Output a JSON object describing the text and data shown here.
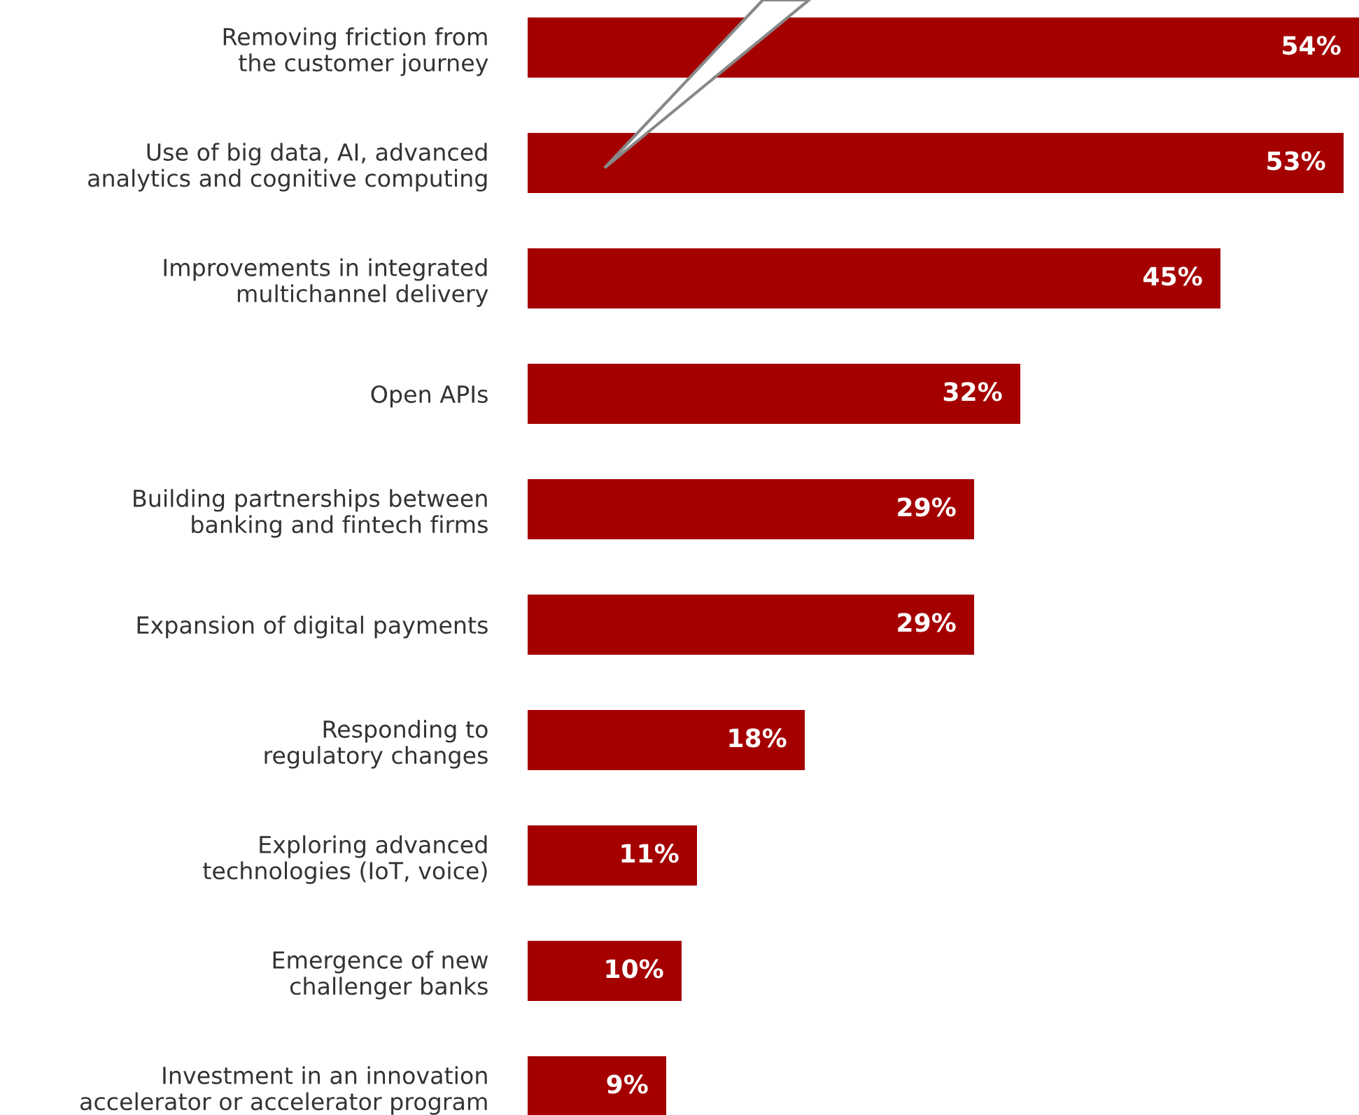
{
  "chart_data": {
    "type": "bar",
    "orientation": "horizontal",
    "color": "#a50000",
    "value_labels": [
      "54%",
      "53%",
      "45%",
      "32%",
      "29%",
      "29%",
      "18%",
      "11%",
      "10%",
      "9%"
    ],
    "categories": [
      "Removing friction from\nthe customer journey",
      "Use of big data, AI, advanced\nanalytics and cognitive computing",
      "Improvements in integrated\nmultichannel delivery",
      "Open APIs",
      "Building partnerships between\nbanking and fintech firms",
      "Expansion of digital payments",
      "Responding to\nregulatory changes",
      "Exploring advanced\ntechnologies (IoT, voice)",
      "Emergence of new\nchallenger banks",
      "Investment in an innovation\naccelerator or accelerator program"
    ],
    "values": [
      54,
      53,
      45,
      32,
      29,
      29,
      18,
      11,
      10,
      9
    ]
  }
}
